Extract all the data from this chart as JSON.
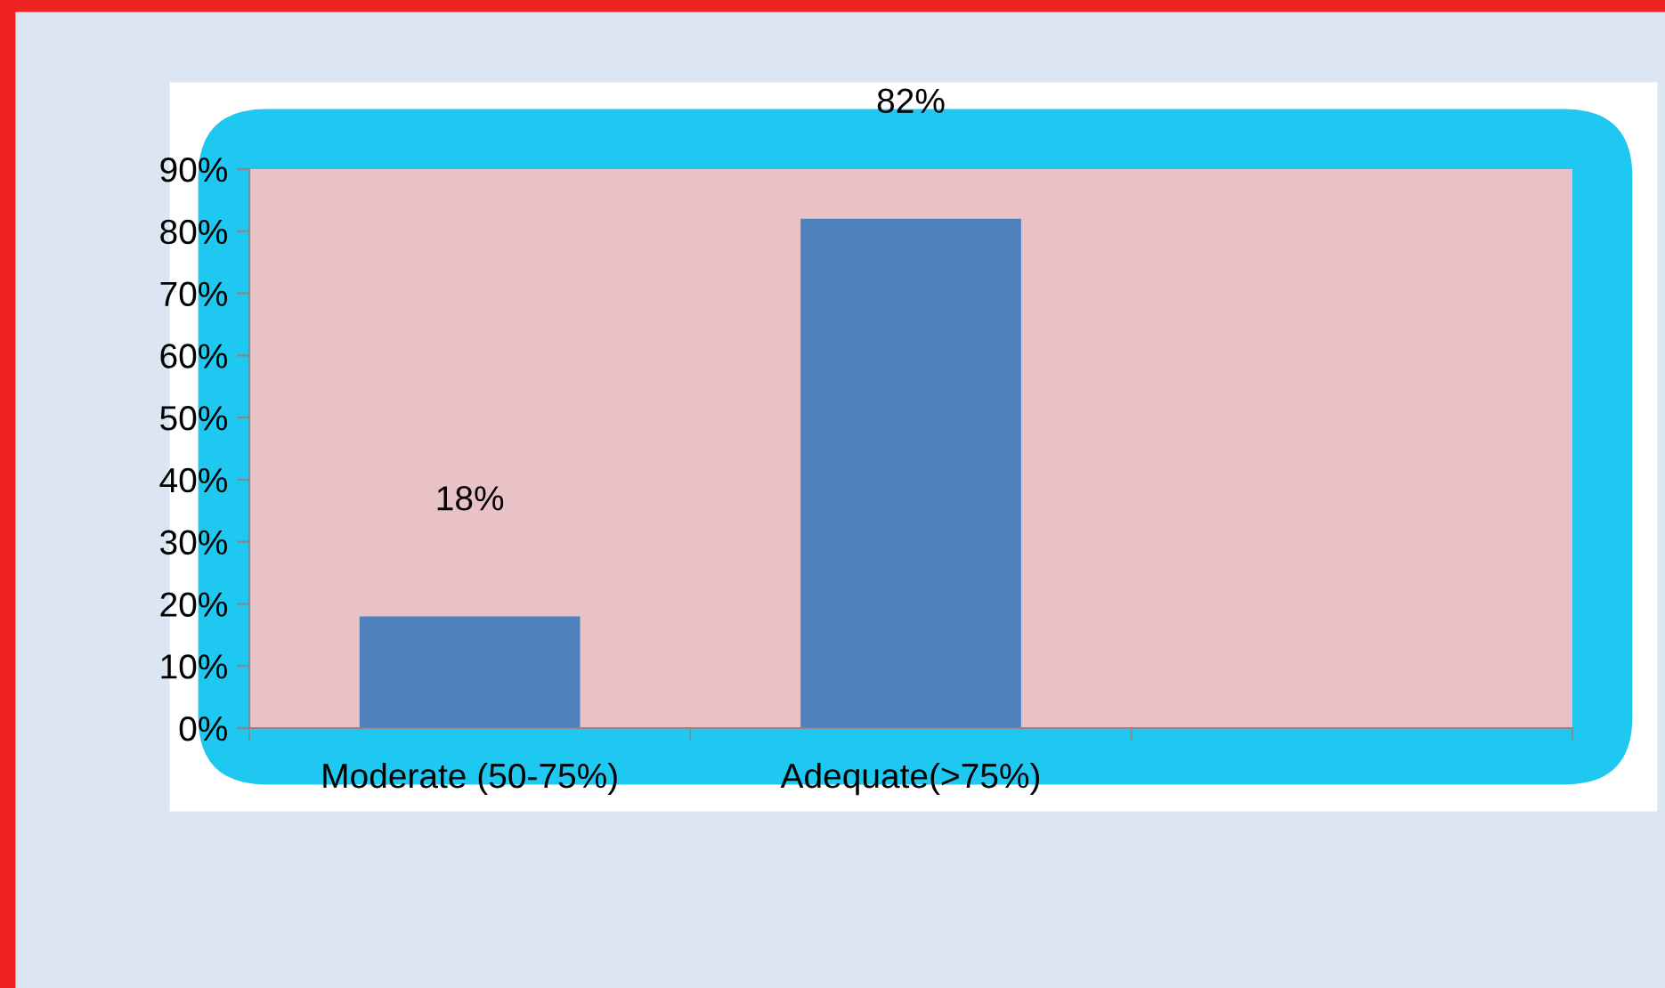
{
  "chart_data": {
    "type": "bar",
    "categories": [
      "Moderate (50-75%)",
      "Adequate(>75%)",
      null
    ],
    "values": [
      18,
      82,
      null
    ],
    "value_labels": [
      "18%",
      "82%",
      null
    ],
    "color": "#4f81bd",
    "ylim": [
      0,
      90
    ],
    "yticks": [
      {
        "value": 0,
        "label": "0%"
      },
      {
        "value": 10,
        "label": "10%"
      },
      {
        "value": 20,
        "label": "20%"
      },
      {
        "value": 30,
        "label": "30%"
      },
      {
        "value": 40,
        "label": "40%"
      },
      {
        "value": 50,
        "label": "50%"
      },
      {
        "value": 60,
        "label": "60%"
      },
      {
        "value": 70,
        "label": "70%"
      },
      {
        "value": 80,
        "label": "80%"
      },
      {
        "value": 90,
        "label": "90%"
      }
    ],
    "grid": false
  }
}
